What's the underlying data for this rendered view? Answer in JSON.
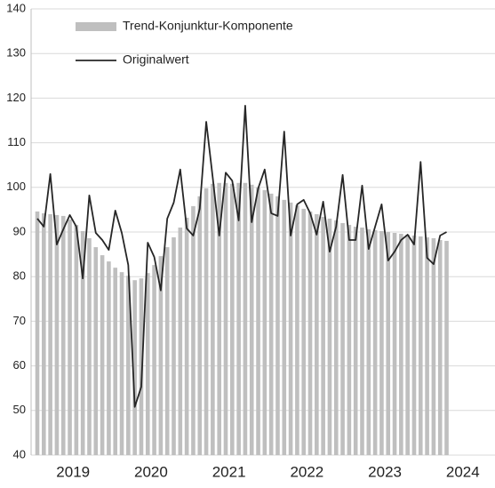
{
  "chart_data": {
    "type": "bar-line",
    "categories": [
      null,
      null,
      null,
      null,
      null,
      null,
      null,
      null,
      null,
      null,
      null,
      null,
      null,
      null,
      null,
      null,
      null,
      null,
      null,
      null,
      null,
      null,
      null,
      null,
      null,
      null,
      null,
      null,
      null,
      null,
      null,
      null,
      null,
      null,
      null,
      null,
      null,
      null,
      null,
      null,
      null,
      null,
      null,
      null,
      null,
      null,
      null,
      null,
      null,
      null,
      null,
      null,
      null,
      null,
      null,
      null,
      null,
      null,
      null,
      null,
      null,
      null,
      null,
      null
    ],
    "year_labels": [
      "2019",
      "2020",
      "2021",
      "2022",
      "2023",
      "2024"
    ],
    "series": [
      {
        "name": "Trend-Konjunktur-Komponente",
        "kind": "bar",
        "color": "#bfbfbf",
        "values": [
          94.6,
          94.2,
          94,
          93.8,
          93.6,
          92.8,
          91.6,
          90.2,
          88.6,
          86.6,
          84.8,
          83.4,
          82,
          81,
          80.2,
          79.2,
          79.6,
          80.8,
          82.6,
          84.6,
          86.6,
          88.8,
          91,
          93.2,
          95.8,
          98,
          99.8,
          100.8,
          101,
          101,
          100.8,
          101,
          101,
          100.6,
          100,
          99.4,
          98.6,
          98,
          97.2,
          96.6,
          96,
          95.2,
          94.6,
          94,
          93.4,
          93,
          92.6,
          92,
          91.6,
          91.2,
          91,
          90.6,
          90.4,
          90.2,
          90,
          89.8,
          89.6,
          89.4,
          89.2,
          89,
          88.8,
          88.6,
          88.2,
          88
        ]
      },
      {
        "name": "Originalwert",
        "kind": "line",
        "color": "#262626",
        "values": [
          93,
          91.2,
          103,
          87.2,
          90.6,
          93.8,
          91.2,
          79.6,
          98.2,
          89.8,
          88.2,
          86,
          94.8,
          89.8,
          82.6,
          50.8,
          55.3,
          87.6,
          84.4,
          76.9,
          93,
          96.6,
          104,
          90.8,
          89.2,
          95.2,
          114.7,
          102.2,
          89.2,
          103.3,
          101.5,
          92.6,
          118.3,
          92.2,
          99.8,
          104,
          94.2,
          93.6,
          112.5,
          89.2,
          96.2,
          97.2,
          94.2,
          89.4,
          96.8,
          85.6,
          91.2,
          102.8,
          88.2,
          88.2,
          100.4,
          86.2,
          91.2,
          96.2,
          83.6,
          85.6,
          88.2,
          89.4,
          87.2,
          105.7,
          84.2,
          82.8,
          89.2,
          90
        ]
      }
    ],
    "ylim": [
      40,
      140
    ],
    "yticks": [
      40,
      50,
      60,
      70,
      80,
      90,
      100,
      110,
      120,
      130,
      140
    ],
    "grid": true
  }
}
